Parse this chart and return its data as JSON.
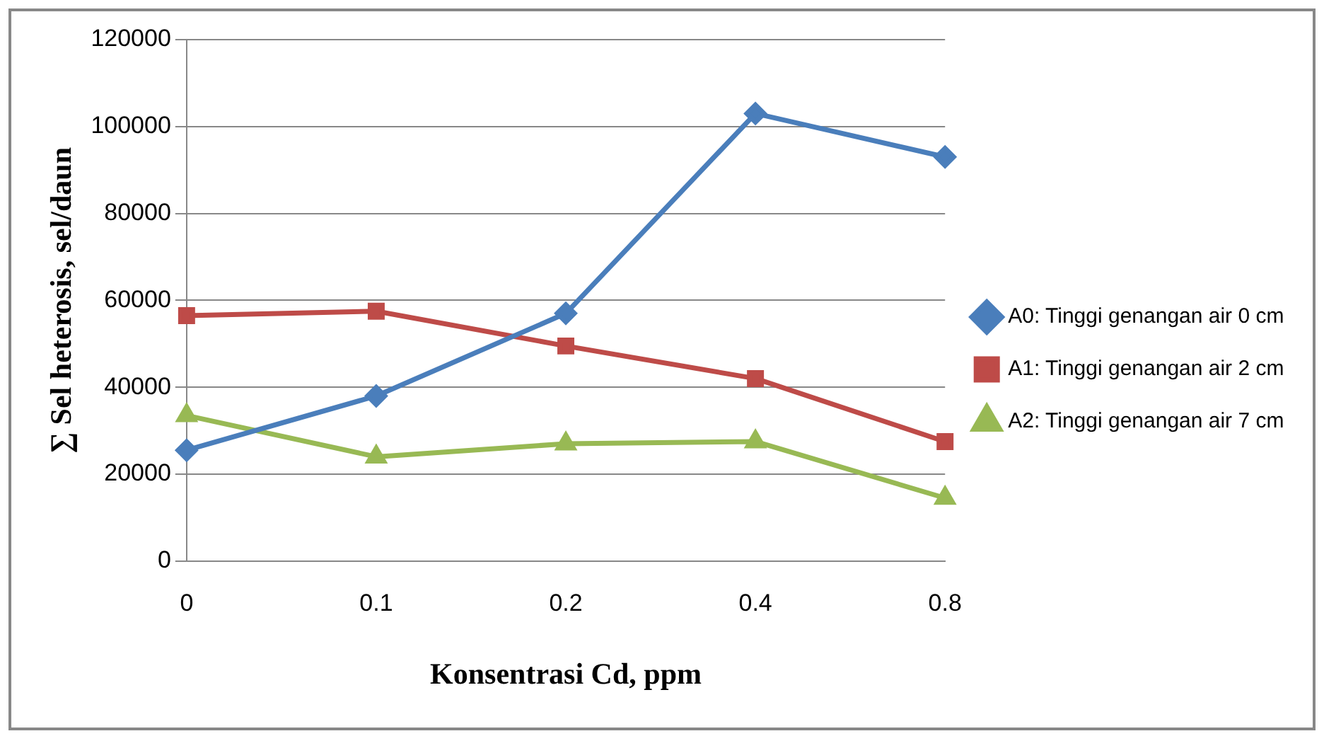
{
  "chart_data": {
    "type": "line",
    "xlabel": "Konsentrasi Cd, ppm",
    "ylabel": "∑ Sel heterosis, sel/daun",
    "categories": [
      "0",
      "0.1",
      "0.2",
      "0.4",
      "0.8"
    ],
    "series": [
      {
        "name": "A0: Tinggi genangan air 0 cm",
        "color": "#4a7ebb",
        "marker": "diamond",
        "values": [
          25500,
          38000,
          57000,
          103000,
          93000
        ]
      },
      {
        "name": "A1: Tinggi genangan air 2 cm",
        "color": "#be4b48",
        "marker": "square",
        "values": [
          56500,
          57500,
          49500,
          42000,
          27500
        ]
      },
      {
        "name": "A2: Tinggi genangan air 7 cm",
        "color": "#98b954",
        "marker": "triangle",
        "values": [
          33500,
          24000,
          27000,
          27500,
          14500
        ]
      }
    ],
    "ylim": [
      0,
      120000
    ],
    "yticks": [
      0,
      20000,
      40000,
      60000,
      80000,
      100000,
      120000
    ],
    "grid": "y",
    "legend": "right",
    "line_style": "solid"
  }
}
